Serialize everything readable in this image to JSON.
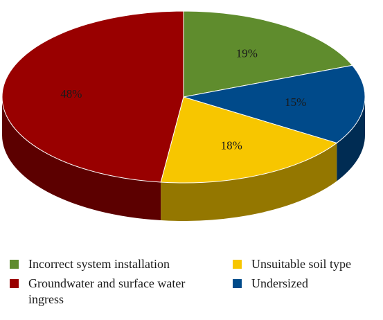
{
  "chart_data": {
    "type": "pie",
    "title": "",
    "slices": [
      {
        "label": "Incorrect system installation",
        "value": 19,
        "display": "19%",
        "color": "#5f8c2d"
      },
      {
        "label": "Undersized",
        "value": 15,
        "display": "15%",
        "color": "#004a8a"
      },
      {
        "label": "Unsuitable soil type",
        "value": 18,
        "display": "18%",
        "color": "#f7c600"
      },
      {
        "label": "Groundwater and surface water ingress",
        "value": 48,
        "display": "48%",
        "color": "#990000"
      }
    ],
    "style": "3d-tilted",
    "legend_position": "bottom"
  },
  "legend": {
    "items": [
      {
        "label": "Incorrect system installation",
        "color": "#5f8c2d"
      },
      {
        "label": "Unsuitable soil type",
        "color": "#f7c600"
      },
      {
        "label": "Groundwater and surface water ingress",
        "color": "#990000"
      },
      {
        "label": "Undersized",
        "color": "#004a8a"
      }
    ]
  }
}
